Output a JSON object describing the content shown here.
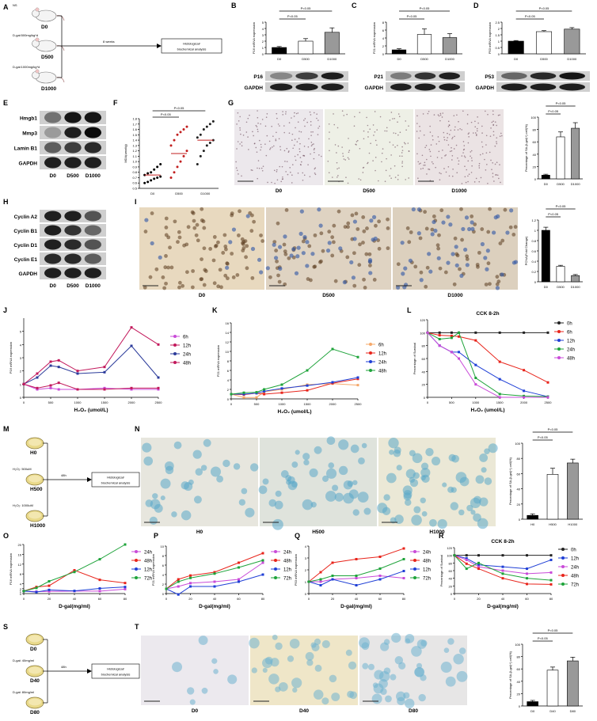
{
  "panel_letters": [
    "A",
    "B",
    "C",
    "D",
    "E",
    "F",
    "G",
    "H",
    "I",
    "J",
    "K",
    "L",
    "M",
    "N",
    "O",
    "P",
    "Q",
    "R",
    "S",
    "T"
  ],
  "panelA": {
    "arrow_text": "8 weeks",
    "box_text": [
      "Histological/",
      "biochemical analysis"
    ],
    "groups": [
      {
        "label": "D0",
        "treat": "NS"
      },
      {
        "label": "D500",
        "treat": "D-gal:500mg/kg*d"
      },
      {
        "label": "D1000",
        "treat": "D-gal:1000mg/kg*d"
      }
    ]
  },
  "panelM": {
    "arrow_text": "48h",
    "box_text": [
      "Histological/",
      "biochemical analysis"
    ],
    "groups": [
      {
        "label": "H0",
        "treat": ""
      },
      {
        "label": "H500",
        "treat": "H₂O₂: 500uM"
      },
      {
        "label": "H1000",
        "treat": "H₂O₂: 1000uM"
      }
    ]
  },
  "panelS": {
    "arrow_text": "48h",
    "box_text": [
      "Histological/",
      "biochemical analysis"
    ],
    "groups": [
      {
        "label": "D0",
        "treat": ""
      },
      {
        "label": "D40",
        "treat": "D-gal: 40mg/ml"
      },
      {
        "label": "D80",
        "treat": "D-gal: 80mg/ml"
      }
    ]
  },
  "blot_groups_D": [
    "D0",
    "D500",
    "D1000"
  ],
  "blots": {
    "B": [
      "P16",
      "GAPDH"
    ],
    "C": [
      "P21",
      "GAPDH"
    ],
    "D": [
      "P53",
      "GAPDH"
    ],
    "E": [
      "Hmgb1",
      "Mmp3",
      "Lamin B1",
      "GAPDH"
    ],
    "H": [
      "Cyclin A2",
      "Cyclin B1",
      "Cyclin D1",
      "Cyclin E1",
      "GAPDH"
    ]
  },
  "images": {
    "G": [
      "D0",
      "D500",
      "D1000"
    ],
    "I": [
      "D0",
      "D500",
      "D1000"
    ],
    "N": [
      "H0",
      "H500",
      "H1000"
    ],
    "T": [
      "D0",
      "D40",
      "D80"
    ]
  },
  "sig": "P<0.05",
  "colors": {
    "c6h": "#f5a86a",
    "c12h": "#e8241b",
    "c24h": "#1f3fd6",
    "c48h": "#1ea33a",
    "c72h": "#1ea33a",
    "purple": "#c94bd8",
    "dark": "#222222",
    "maroon": "#c2185b",
    "navy": "#2a3a9a"
  },
  "chart_data": [
    {
      "panel": "B",
      "type": "bar",
      "categories": [
        "D0",
        "D500",
        "D1000"
      ],
      "values": [
        1.0,
        2.0,
        3.4
      ],
      "errors": [
        0.15,
        0.4,
        0.7
      ],
      "ylabel": "P16 mRNA expression",
      "ylim": [
        0,
        5
      ],
      "yticks": [
        0,
        1,
        2,
        3,
        4,
        5
      ],
      "fills": [
        "#000000",
        "#ffffff",
        "#999999"
      ],
      "sig": [
        [
          "D0",
          "D500"
        ],
        [
          "D0",
          "D1000"
        ]
      ]
    },
    {
      "panel": "C",
      "type": "bar",
      "categories": [
        "D0",
        "D500",
        "D1000"
      ],
      "values": [
        1.0,
        4.9,
        4.1
      ],
      "errors": [
        0.3,
        1.4,
        1.0
      ],
      "ylabel": "P21 mRNA expression",
      "ylim": [
        0,
        8
      ],
      "yticks": [
        0,
        2,
        4,
        6,
        8
      ],
      "fills": [
        "#000000",
        "#ffffff",
        "#999999"
      ],
      "sig": [
        [
          "D0",
          "D500"
        ],
        [
          "D0",
          "D1000"
        ]
      ]
    },
    {
      "panel": "D",
      "type": "bar",
      "categories": [
        "D0",
        "D500",
        "D1000"
      ],
      "values": [
        1.0,
        1.75,
        1.95
      ],
      "errors": [
        0.05,
        0.08,
        0.12
      ],
      "ylabel": "P53 mRNA expression",
      "ylim": [
        0,
        2.5
      ],
      "yticks": [
        0,
        0.5,
        1.0,
        1.5,
        2.0,
        2.5
      ],
      "fills": [
        "#000000",
        "#ffffff",
        "#999999"
      ],
      "sig": [
        [
          "D0",
          "D500"
        ],
        [
          "D0",
          "D1000"
        ]
      ]
    },
    {
      "panel": "F",
      "type": "scatter",
      "categories": [
        "D0",
        "D500",
        "D1000"
      ],
      "ylabel": "MDA(umol/g)",
      "ylim": [
        0.5,
        1.8
      ],
      "yticks": [
        0.5,
        0.6,
        0.7,
        0.8,
        0.9,
        1.0,
        1.1,
        1.2,
        1.3,
        1.4,
        1.5,
        1.6,
        1.7,
        1.8
      ],
      "means": [
        0.75,
        1.15,
        1.4
      ],
      "points": [
        [
          0.6,
          0.62,
          0.65,
          0.68,
          0.7,
          0.72,
          0.75,
          0.78,
          0.8,
          0.85,
          0.9,
          0.95
        ],
        [
          0.7,
          0.8,
          0.9,
          1.0,
          1.1,
          1.2,
          1.3,
          1.4,
          1.5,
          1.55,
          1.6,
          1.65
        ],
        [
          0.95,
          1.1,
          1.2,
          1.3,
          1.35,
          1.4,
          1.45,
          1.5,
          1.6,
          1.65,
          1.7,
          1.75
        ]
      ],
      "sig": [
        [
          "D0",
          "D500"
        ],
        [
          "D0",
          "D1000"
        ]
      ]
    },
    {
      "panel": "G",
      "type": "bar",
      "categories": [
        "D0",
        "D500",
        "D1000"
      ],
      "values": [
        6,
        68,
        82
      ],
      "errors": [
        1.5,
        8,
        9
      ],
      "ylabel": "Percentage of SA-β-gal(+) cell(%)",
      "ylim": [
        0,
        100
      ],
      "yticks": [
        0,
        20,
        40,
        60,
        80,
        100
      ],
      "fills": [
        "#000000",
        "#ffffff",
        "#999999"
      ],
      "sig": [
        [
          "D0",
          "D500"
        ],
        [
          "D0",
          "D1000"
        ]
      ]
    },
    {
      "panel": "I",
      "type": "bar",
      "categories": [
        "D0",
        "D500",
        "D1000"
      ],
      "values": [
        1.0,
        0.3,
        0.12
      ],
      "errors": [
        0.06,
        0.02,
        0.02
      ],
      "ylabel": "PCNA(Fold Change)",
      "ylim": [
        0,
        1.2
      ],
      "yticks": [
        0,
        0.2,
        0.4,
        0.6,
        0.8,
        1.0,
        1.2
      ],
      "fills": [
        "#000000",
        "#ffffff",
        "#999999"
      ],
      "sig": [
        [
          "D0",
          "D500"
        ],
        [
          "D0",
          "D1000"
        ]
      ]
    },
    {
      "panel": "J",
      "type": "line",
      "x": [
        0,
        250,
        500,
        650,
        1000,
        1500,
        2000,
        2500
      ],
      "xlabel": "H₂O₂ (umol/L)",
      "ylabel": "P16 mRNA expression",
      "ylim": [
        0,
        6
      ],
      "xlim": [
        0,
        2500
      ],
      "yticks": [
        0,
        1,
        2,
        3,
        4,
        5
      ],
      "xticks": [
        0,
        500,
        1000,
        1500,
        2000,
        2500
      ],
      "series": [
        {
          "name": "6h",
          "color": "#c94bd8",
          "values": [
            1,
            0.6,
            0.7,
            0.6,
            0.6,
            0.7,
            0.6,
            0.6
          ]
        },
        {
          "name": "12h",
          "color": "#c2185b",
          "values": [
            1,
            0.7,
            0.9,
            1.1,
            0.6,
            0.6,
            0.7,
            0.7
          ]
        },
        {
          "name": "24h",
          "color": "#2a3a9a",
          "values": [
            1,
            1.5,
            2.4,
            2.3,
            1.8,
            1.9,
            3.9,
            1.5
          ]
        },
        {
          "name": "48h",
          "color": "#c2185b",
          "values": [
            1,
            1.8,
            2.7,
            2.8,
            2.0,
            2.3,
            5.3,
            4.0
          ]
        }
      ]
    },
    {
      "panel": "K",
      "type": "line",
      "x": [
        0,
        250,
        500,
        650,
        1000,
        1500,
        2000,
        2500
      ],
      "xlabel": "H₂O₂ (umol/L)",
      "ylabel": "P21 mRNA expression",
      "ylim": [
        0,
        16
      ],
      "xlim": [
        0,
        2500
      ],
      "yticks": [
        0,
        2,
        4,
        6,
        8,
        10,
        12,
        14,
        16
      ],
      "xticks": [
        0,
        500,
        1000,
        1500,
        2000,
        2500
      ],
      "series": [
        {
          "name": "6h",
          "color": "#f5a86a",
          "values": [
            1,
            0.3,
            0.3,
            1.5,
            2.0,
            3.0,
            3.2,
            2.9
          ]
        },
        {
          "name": "12h",
          "color": "#e8241b",
          "values": [
            1,
            0.9,
            1.2,
            1.0,
            1.3,
            1.8,
            3.3,
            4.2
          ]
        },
        {
          "name": "24h",
          "color": "#1f3fd6",
          "values": [
            1,
            1.0,
            1.2,
            1.6,
            2.2,
            2.8,
            3.5,
            4.5
          ]
        },
        {
          "name": "48h",
          "color": "#1ea33a",
          "values": [
            1,
            1.3,
            1.4,
            2.0,
            3.0,
            6.0,
            10.5,
            8.8
          ]
        }
      ]
    },
    {
      "panel": "L",
      "type": "line",
      "title": "CCK 8-2h",
      "x": [
        0,
        250,
        500,
        650,
        1000,
        1500,
        2000,
        2500
      ],
      "xlabel": "H₂O₂ (umol/L)",
      "ylabel": "Percentage of Survival",
      "ylim": [
        0,
        120
      ],
      "xlim": [
        0,
        2500
      ],
      "yticks": [
        0,
        20,
        40,
        60,
        80,
        100,
        120
      ],
      "xticks": [
        0,
        500,
        1000,
        1500,
        2000,
        2500
      ],
      "series": [
        {
          "name": "0h",
          "color": "#222222",
          "values": [
            100,
            100,
            100,
            100,
            100,
            100,
            100,
            100
          ]
        },
        {
          "name": "6h",
          "color": "#e8241b",
          "values": [
            100,
            96,
            95,
            94,
            88,
            55,
            42,
            23
          ]
        },
        {
          "name": "12h",
          "color": "#1f3fd6",
          "values": [
            100,
            80,
            70,
            70,
            50,
            28,
            10,
            1
          ]
        },
        {
          "name": "24h",
          "color": "#1ea33a",
          "values": [
            100,
            90,
            92,
            100,
            30,
            5,
            2,
            1
          ]
        },
        {
          "name": "48h",
          "color": "#c94bd8",
          "values": [
            100,
            80,
            70,
            60,
            20,
            0,
            0,
            0
          ]
        }
      ]
    },
    {
      "panel": "N",
      "type": "bar",
      "categories": [
        "H0",
        "H500",
        "H1000"
      ],
      "values": [
        5,
        59,
        74
      ],
      "errors": [
        2,
        8,
        5
      ],
      "ylabel": "Percentage of SA-β-gal(+) cell(%)",
      "ylim": [
        0,
        100
      ],
      "yticks": [
        0,
        20,
        40,
        60,
        80,
        100
      ],
      "fills": [
        "#000000",
        "#ffffff",
        "#999999"
      ],
      "sig": [
        [
          "H0",
          "H500"
        ],
        [
          "H0",
          "H1000"
        ]
      ]
    },
    {
      "panel": "O",
      "type": "line",
      "x": [
        0,
        10,
        20,
        40,
        60,
        80
      ],
      "xlabel": "D-gal(mg/ml)",
      "ylabel": "P16 mRNA expression",
      "ylim": [
        0,
        20
      ],
      "xlim": [
        0,
        80
      ],
      "yticks": [
        0,
        1,
        2,
        4,
        8,
        12,
        16,
        20
      ],
      "xticks": [
        0,
        20,
        40,
        60,
        80
      ],
      "series": [
        {
          "name": "24h",
          "color": "#c94bd8",
          "values": [
            1,
            0.8,
            0.9,
            1.0,
            1.0,
            1.8
          ]
        },
        {
          "name": "48h",
          "color": "#e8241b",
          "values": [
            1,
            2.7,
            3.2,
            9.5,
            5.6,
            4.3
          ]
        },
        {
          "name": "12h",
          "color": "#1f3fd6",
          "values": [
            1,
            0.6,
            1.5,
            1.1,
            2.1,
            2.7
          ]
        },
        {
          "name": "72h",
          "color": "#1ea33a",
          "values": [
            1,
            2.3,
            5.0,
            8.8,
            14.0,
            20.0
          ]
        }
      ]
    },
    {
      "panel": "P",
      "type": "line",
      "x": [
        0,
        10,
        20,
        40,
        60,
        80
      ],
      "xlabel": "D-gal(mg/ml)",
      "ylabel": "P21 mRNA expression",
      "ylim": [
        0,
        10
      ],
      "xlim": [
        0,
        80
      ],
      "yticks": [
        0,
        2,
        4,
        6,
        8,
        10
      ],
      "xticks": [
        0,
        20,
        40,
        60,
        80
      ],
      "series": [
        {
          "name": "24h",
          "color": "#c94bd8",
          "values": [
            1,
            1.5,
            2.2,
            2.5,
            3.0,
            6.5
          ]
        },
        {
          "name": "48h",
          "color": "#e8241b",
          "values": [
            1,
            3.0,
            3.8,
            4.5,
            6.5,
            8.5
          ]
        },
        {
          "name": "12h",
          "color": "#1f3fd6",
          "values": [
            1,
            -0.2,
            1.5,
            1.5,
            2.5,
            4.0
          ]
        },
        {
          "name": "72h",
          "color": "#1ea33a",
          "values": [
            1,
            2.5,
            3.3,
            4.2,
            5.5,
            7.0
          ]
        }
      ]
    },
    {
      "panel": "Q",
      "type": "line",
      "x": [
        0,
        10,
        20,
        40,
        60,
        80
      ],
      "xlabel": "D-gal(mg/ml)",
      "ylabel": "P53 mRNA expression",
      "ylim": [
        0,
        4
      ],
      "xlim": [
        0,
        80
      ],
      "yticks": [
        0,
        1,
        2,
        3,
        4
      ],
      "xticks": [
        0,
        20,
        40,
        60,
        80
      ],
      "series": [
        {
          "name": "24h",
          "color": "#c94bd8",
          "values": [
            1,
            1.0,
            1.2,
            1.3,
            1.5,
            1.3
          ]
        },
        {
          "name": "48h",
          "color": "#e8241b",
          "values": [
            1,
            1.8,
            2.6,
            2.9,
            3.1,
            3.8
          ]
        },
        {
          "name": "12h",
          "color": "#1f3fd6",
          "values": [
            1,
            0.7,
            1.2,
            0.7,
            1.2,
            1.9
          ]
        },
        {
          "name": "72h",
          "color": "#1ea33a",
          "values": [
            1,
            1.2,
            1.5,
            1.5,
            2.1,
            2.9
          ]
        }
      ]
    },
    {
      "panel": "R",
      "type": "line",
      "title": "CCK 8-2h",
      "x": [
        0,
        10,
        20,
        40,
        60,
        80
      ],
      "xlabel": "D-gal(mg/ml)",
      "ylabel": "Percentage of Survival",
      "ylim": [
        0,
        120
      ],
      "xlim": [
        0,
        80
      ],
      "yticks": [
        0,
        20,
        40,
        60,
        80,
        100,
        120
      ],
      "xticks": [
        0,
        20,
        40,
        60,
        80
      ],
      "series": [
        {
          "name": "0h",
          "color": "#222222",
          "values": [
            100,
            100,
            100,
            100,
            100,
            100
          ]
        },
        {
          "name": "12h",
          "color": "#1f3fd6",
          "values": [
            100,
            92,
            75,
            70,
            65,
            88
          ]
        },
        {
          "name": "24h",
          "color": "#c94bd8",
          "values": [
            100,
            88,
            70,
            60,
            52,
            55
          ]
        },
        {
          "name": "48h",
          "color": "#e8241b",
          "values": [
            100,
            78,
            65,
            40,
            25,
            24
          ]
        },
        {
          "name": "72h",
          "color": "#1ea33a",
          "values": [
            100,
            65,
            80,
            52,
            40,
            35
          ]
        }
      ]
    },
    {
      "panel": "T",
      "type": "bar",
      "categories": [
        "D0",
        "D40",
        "D80"
      ],
      "values": [
        7,
        58,
        73
      ],
      "errors": [
        2,
        5,
        6
      ],
      "ylabel": "Percentage of SA-β-gal(+) cell(%)",
      "ylim": [
        0,
        100
      ],
      "yticks": [
        0,
        20,
        40,
        60,
        80,
        100
      ],
      "fills": [
        "#000000",
        "#ffffff",
        "#999999"
      ],
      "sig": [
        [
          "D0",
          "D40"
        ],
        [
          "D0",
          "D80"
        ]
      ]
    }
  ]
}
